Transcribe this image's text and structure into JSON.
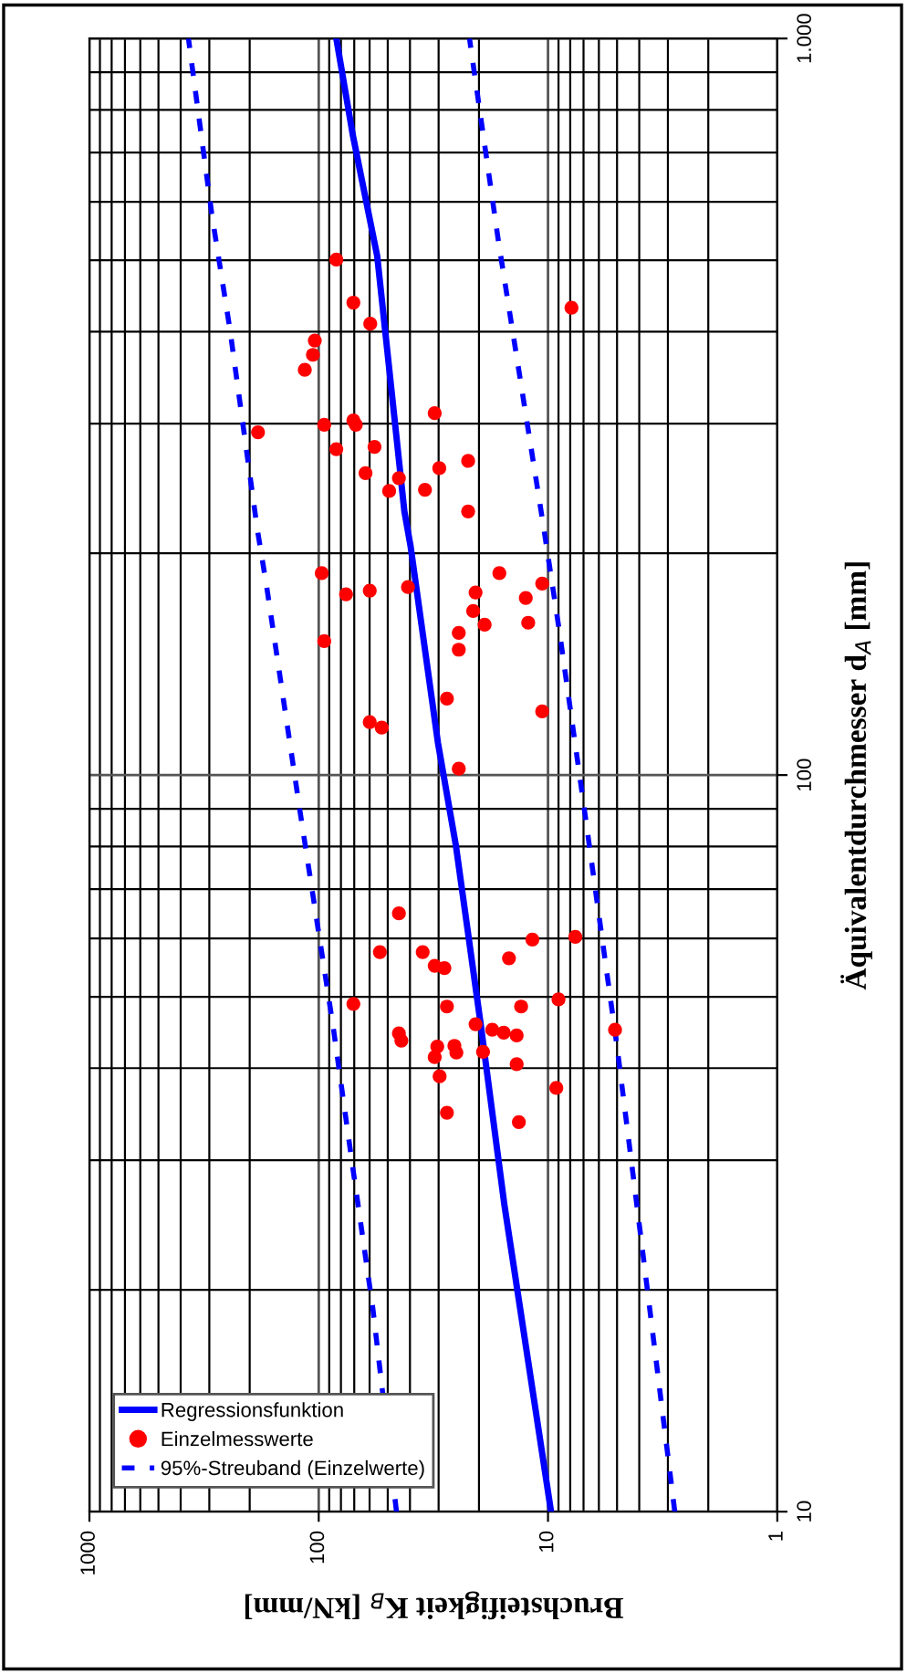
{
  "chart_data": {
    "type": "scatter",
    "xlabel": "Bruchsteifigkeit K$_{B}$ [kN/mm]",
    "ylabel": "Äquivalentdurchmesser d$_{A}$ [mm]",
    "log": "xy",
    "xlim": [
      1000,
      1
    ],
    "ylim": [
      10,
      1000
    ],
    "xticks": [
      1000,
      100,
      10,
      1
    ],
    "yticks": [
      10,
      100,
      {
        "value": 1000,
        "label": "1.000"
      }
    ],
    "grid": true,
    "legend": "bottom left",
    "series": [
      {
        "name": "Regressionsfunktion",
        "type": "line",
        "color": "#0000ff",
        "marker": "none",
        "line_style": "solid",
        "values": [
          10,
          26.1,
          46.1,
          80.1,
          110.6,
          205,
          228,
          507,
          741,
          1000
        ],
        "x": [
          9.7,
          15.5,
          19.7,
          25.2,
          30.2,
          39.8,
          42.3,
          55.6,
          71.1,
          83.8
        ]
      },
      {
        "name": "Einzelmesswerte",
        "color": "#ff0000",
        "marker": "circle",
        "values": [
          501,
          438,
          410,
          431,
          389,
          372,
          355,
          310,
          292,
          299,
          303,
          299,
          277,
          279,
          267,
          261,
          257,
          253,
          243,
          244,
          228,
          188,
          176,
          178,
          180,
          188,
          177,
          182,
          174,
          167,
          160,
          161,
          156,
          152,
          148,
          127,
          122,
          118,
          116,
          102,
          64.9,
          57.5,
          57.5,
          55.1,
          54.7,
          59.8,
          60.3,
          56.4,
          48.9,
          48.5,
          48.5,
          49.6,
          45.9,
          45.1,
          44.6,
          43.6,
          45.1,
          44.7,
          44.3,
          42.8,
          41.4,
          42.9,
          42.0,
          42.1,
          40.5,
          39.0,
          37.6,
          34.8,
          33.8
        ],
        "x": [
          83.8,
          70.6,
          59.6,
          7.9,
          104,
          106,
          115,
          31.2,
          184,
          94.6,
          70.6,
          68.9,
          83.8,
          57.1,
          22.3,
          29.8,
          62.5,
          44.7,
          49.3,
          34.4,
          22.3,
          97,
          76,
          59.9,
          40.8,
          16.3,
          20.7,
          10.6,
          12.5,
          21.2,
          18.9,
          12.2,
          24.5,
          94.6,
          24.5,
          27.6,
          10.6,
          59.9,
          53.1,
          24.5,
          44.7,
          54.1,
          35.2,
          31.2,
          28.3,
          11.7,
          7.6,
          14.8,
          70.6,
          27.6,
          13.1,
          9.0,
          20.7,
          5.1,
          44.7,
          43.6,
          17.5,
          15.6,
          13.7,
          30.4,
          31.2,
          25.6,
          25.1,
          19.2,
          13.7,
          29.7,
          9.2,
          27.6,
          13.4
        ]
      },
      {
        "name": "95%-Streuband (Einzelwerte)",
        "type": "line",
        "color": "#0000ff",
        "marker": "none",
        "line_style": "dashed",
        "values": [
          10,
          18.9,
          30.1,
          45.3,
          89.8,
          181,
          215,
          403,
          579,
          1000
        ],
        "x": [
          45.8,
          58.1,
          71.9,
          86.3,
          121,
          169,
          185,
          244,
          293,
          370
        ]
      },
      {
        "type": "line",
        "color": "#0000ff",
        "marker": "none",
        "line_style": "dashed",
        "values": [
          10,
          21.6,
          42.8,
          91.5,
          156,
          215,
          527,
          1000
        ],
        "x": [
          2.8,
          3.8,
          5.0,
          7.0,
          8.9,
          10.4,
          16.4,
          22.0
        ]
      }
    ]
  }
}
